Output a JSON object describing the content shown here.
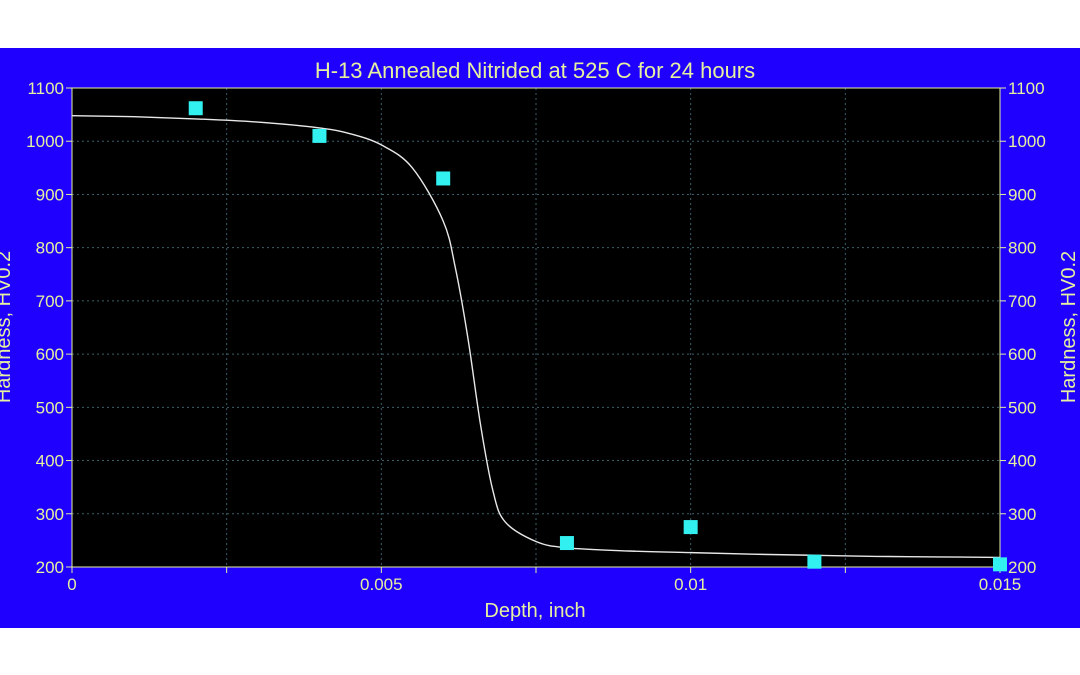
{
  "colors": {
    "panel_background": "#1f00ff",
    "plot_background": "#000000",
    "text": "#e6f0a0",
    "grid": "#3b5f6a",
    "curve": "#e8e8e8",
    "marker": "#33f0f0"
  },
  "chart_data": {
    "type": "scatter",
    "title": "H-13 Annealed Nitrided at 525 C for 24 hours",
    "xlabel": "Depth, inch",
    "ylabel_left": "Hardness, HV0.2",
    "ylabel_right": "Hardness, HV0.2",
    "xlim": [
      0,
      0.015
    ],
    "ylim": [
      200,
      1100
    ],
    "x_ticks": [
      0,
      0.005,
      0.01,
      0.015
    ],
    "x_tick_labels": [
      "0",
      "0.005",
      "0.01",
      "0.015"
    ],
    "x_minor_ticks": [
      0.0025,
      0.0075,
      0.0125
    ],
    "y_ticks": [
      200,
      300,
      400,
      500,
      600,
      700,
      800,
      900,
      1000,
      1100
    ],
    "y_tick_labels": [
      "200",
      "300",
      "400",
      "500",
      "600",
      "700",
      "800",
      "900",
      "1000",
      "1100"
    ],
    "grid": true,
    "series": [
      {
        "kind": "markers",
        "x": [
          0.002,
          0.004,
          0.006,
          0.008,
          0.01,
          0.012,
          0.015
        ],
        "y": [
          1062,
          1010,
          930,
          245,
          275,
          210,
          205
        ]
      },
      {
        "kind": "fit-curve",
        "x": [
          0,
          0.001,
          0.002,
          0.003,
          0.004,
          0.0045,
          0.005,
          0.0055,
          0.006,
          0.0062,
          0.0064,
          0.0066,
          0.0068,
          0.007,
          0.0075,
          0.008,
          0.009,
          0.01,
          0.011,
          0.012,
          0.013,
          0.014,
          0.015
        ],
        "y": [
          1048,
          1046,
          1042,
          1036,
          1025,
          1014,
          993,
          950,
          850,
          760,
          630,
          470,
          345,
          285,
          248,
          236,
          230,
          227,
          224,
          222,
          220,
          219,
          218
        ]
      }
    ]
  }
}
